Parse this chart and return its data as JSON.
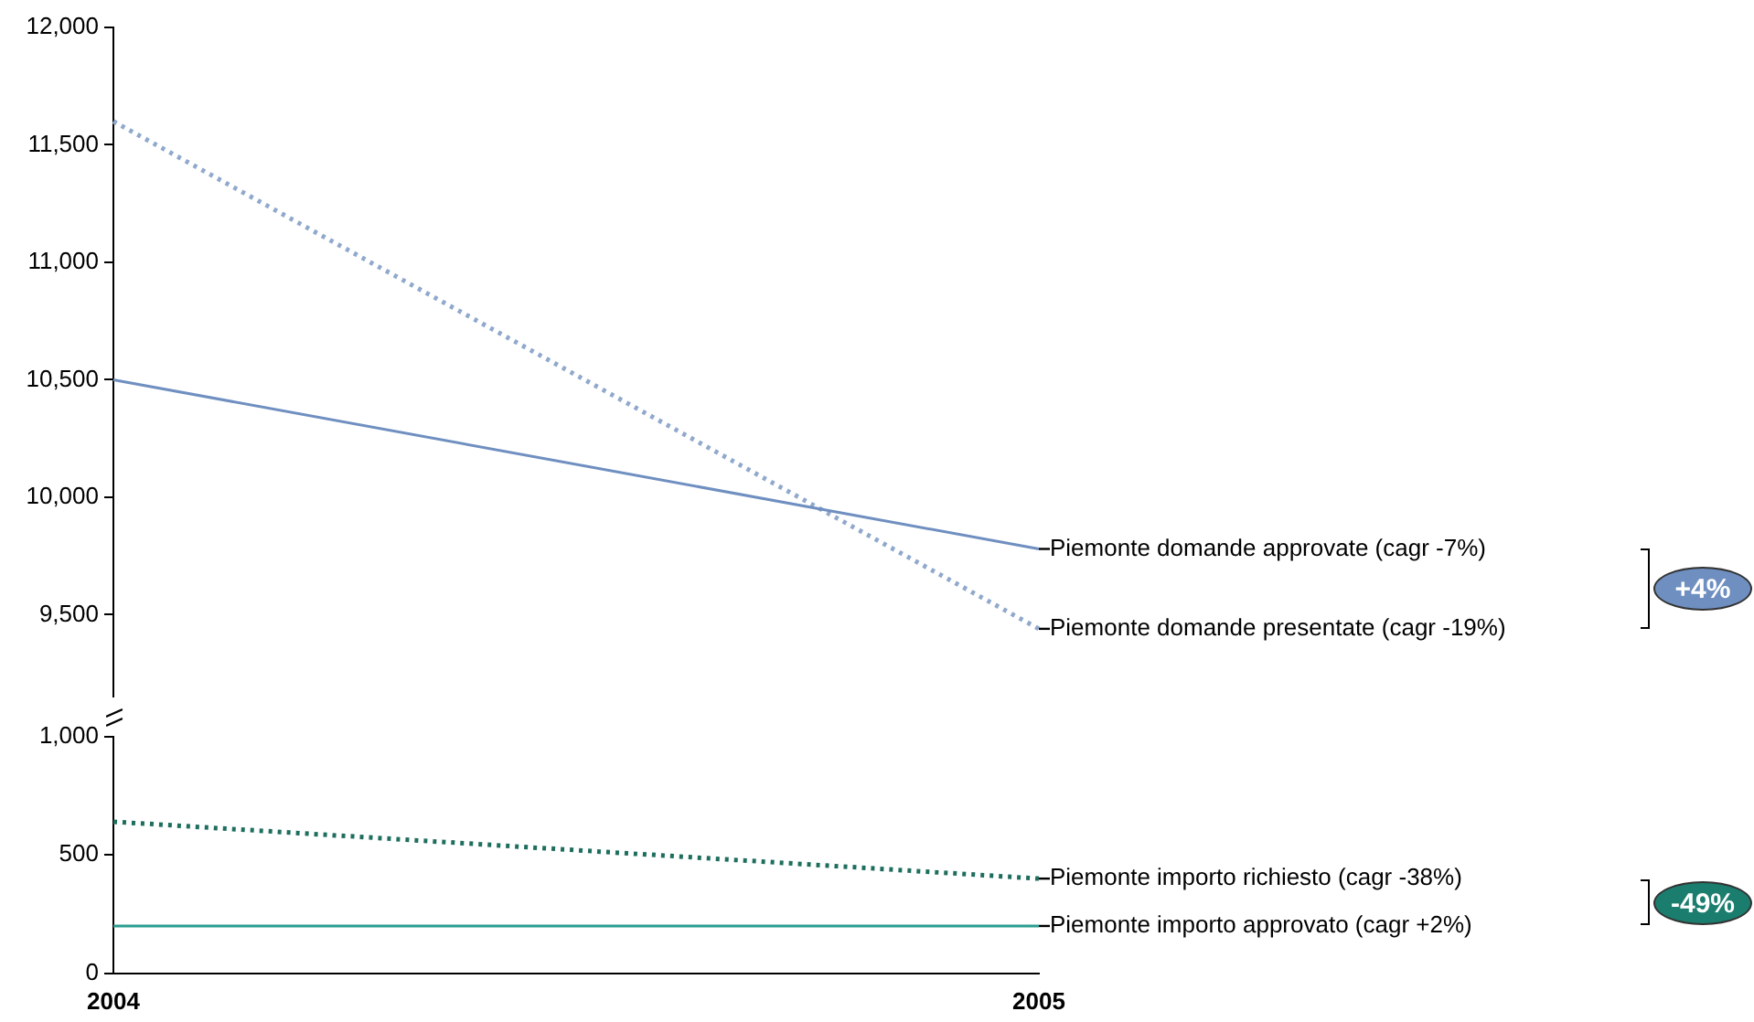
{
  "chart_data": [
    {
      "type": "line",
      "categories": [
        "2004",
        "2005"
      ],
      "ylim": [
        9150,
        12000
      ],
      "yticks": [
        {
          "value": 9500,
          "label": "9,500"
        },
        {
          "value": 10000,
          "label": "10,000"
        },
        {
          "value": 10500,
          "label": "10,500"
        },
        {
          "value": 11000,
          "label": "11,000"
        },
        {
          "value": 11500,
          "label": "11,500"
        },
        {
          "value": 12000,
          "label": "12,000"
        }
      ],
      "tick_labels": "y",
      "grid": false,
      "legend": false,
      "marker": "none",
      "series": [
        {
          "name": "Piemonte domande approvate (cagr -7%)",
          "color": "#6f8fc0",
          "values": [
            10500,
            9780
          ],
          "line_style": "solid"
        },
        {
          "name": "Piemonte domande presentate (cagr -19%)",
          "color": "#8fa8cc",
          "values": [
            11600,
            9440
          ],
          "line_style": "dotted"
        }
      ],
      "annotations": [
        "+4%"
      ]
    },
    {
      "type": "line",
      "categories": [
        "2004",
        "2005"
      ],
      "ylim": [
        0,
        1000
      ],
      "yticks": [
        0,
        500,
        {
          "value": 1000,
          "label": "1,000"
        }
      ],
      "grid": false,
      "legend": false,
      "marker": "none",
      "series": [
        {
          "name": "Piemonte importo richiesto (cagr -38%)",
          "color": "#1e6e5e",
          "values": [
            640,
            400
          ],
          "line_style": "dotted"
        },
        {
          "name": "Piemonte importo approvato (cagr +2%)",
          "color": "#2a9d8f",
          "values": [
            200,
            200
          ],
          "line_style": "solid"
        }
      ],
      "annotations": [
        "-49%"
      ]
    }
  ]
}
